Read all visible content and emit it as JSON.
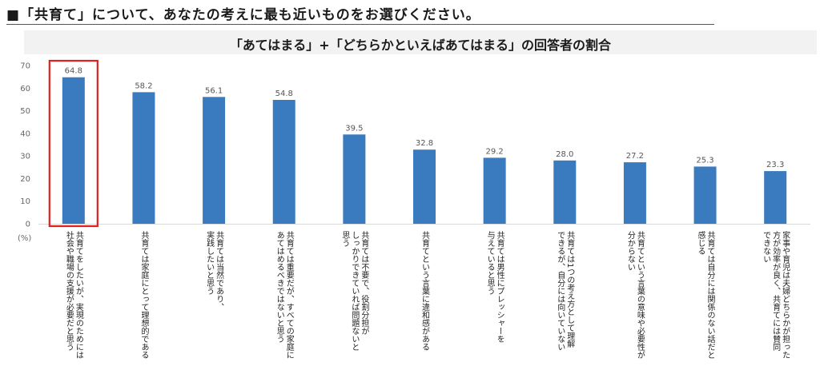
{
  "question": "■「共育て」について、あなたの考えに最も近いものをお選びください。",
  "colors": {
    "bar": "#3a7bbf",
    "highlight_box": "#e02020",
    "grid": "#d9d9d9"
  },
  "chart_data": {
    "type": "bar",
    "title": "「あてはまる」+「どちらかといえばあてはまる」の回答者の割合",
    "ylabel": "(%)",
    "ylim": [
      0,
      70
    ],
    "yticks": [
      "0",
      "10",
      "20",
      "30",
      "40",
      "50",
      "60",
      "70"
    ],
    "grid": false,
    "highlighted_index": 0,
    "categories": [
      [
        "共育てをしたいが、実現のためには",
        "社会や職場の支援が必要だと思う"
      ],
      [
        "共育ては家庭にとって理想的である"
      ],
      [
        "共育ては当然であり、",
        "実践したいと思う"
      ],
      [
        "共育ては重要だが、すべての家庭に",
        "あてはめるべきではないと思う"
      ],
      [
        "共育ては不要で、役割分担が",
        "しっかりできていれば問題ないと",
        "思う"
      ],
      [
        "共育てという言葉に違和感がある"
      ],
      [
        "共育ては男性にプレッシャーを",
        "与えていると思う"
      ],
      [
        "共育ては1つの考え方として理解",
        "できるが、自分には向いていない"
      ],
      [
        "共育てという言葉の意味や必要性が",
        "分からない"
      ],
      [
        "共育ては自分には関係のない話だと",
        "感じる"
      ],
      [
        "家事や育児は夫婦どちらかが担った",
        "方が効率が良く、共育てには賛同",
        "できない"
      ]
    ],
    "values": [
      64.8,
      58.2,
      56.1,
      54.8,
      39.5,
      32.8,
      29.2,
      28.0,
      27.2,
      25.3,
      23.3
    ],
    "value_labels": [
      "64.8",
      "58.2",
      "56.1",
      "54.8",
      "39.5",
      "32.8",
      "29.2",
      "28.0",
      "27.2",
      "25.3",
      "23.3"
    ]
  }
}
